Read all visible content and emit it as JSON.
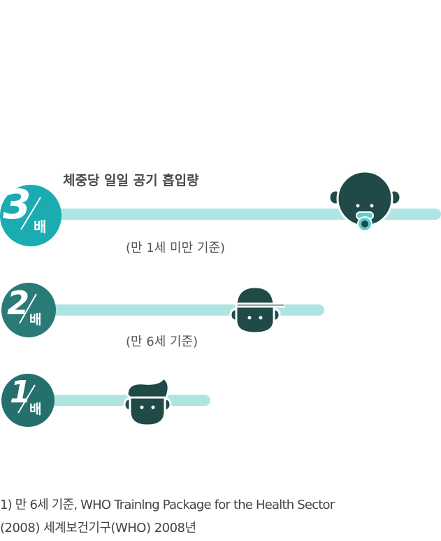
{
  "heading": "체중당 일일 공기 흡입량",
  "rows": [
    {
      "multiplier": "3",
      "unit": "배",
      "note": "(만 1세 미만 기준)"
    },
    {
      "multiplier": "2",
      "unit": "배",
      "note": "(만 6세 기준)"
    },
    {
      "multiplier": "1",
      "unit": "배"
    }
  ],
  "footnote": {
    "line1": "1) 만 6세 기준, WHO Trainlng Package for the Health Sector",
    "line2": "(2008) 세계보건기구(WHO) 2008년"
  },
  "colors": {
    "bar": "#ade5e3",
    "circle_3x": "#1aacb0",
    "circle_2x": "#2a7a77",
    "circle_1x": "#24706d",
    "face": "#1f4a47",
    "pacifier": "#5fd0cd"
  },
  "icons": [
    "infant-face-icon",
    "child-cap-face-icon",
    "adult-face-icon"
  ]
}
